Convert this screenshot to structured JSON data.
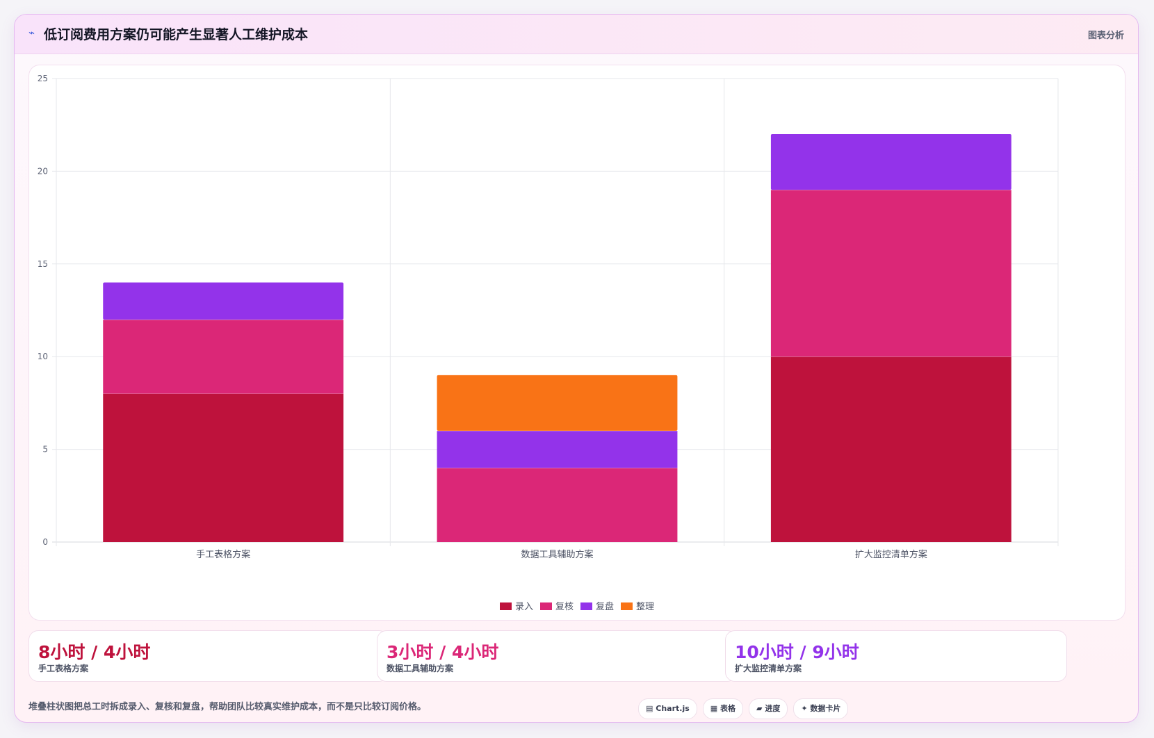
{
  "header": {
    "icon": "trend-icon",
    "title": "低订阅费用方案仍可能产生显著人工维护成本",
    "tag": "图表分析"
  },
  "chart_data": {
    "type": "bar",
    "stacked": true,
    "categories": [
      "手工表格方案",
      "数据工具辅助方案",
      "扩大监控清单方案"
    ],
    "series": [
      {
        "name": "录入",
        "values": [
          8,
          0,
          10
        ],
        "color": "#be123c"
      },
      {
        "name": "复核",
        "values": [
          4,
          4,
          9
        ],
        "color": "#db2777"
      },
      {
        "name": "复盘",
        "values": [
          2,
          2,
          3
        ],
        "color": "#9333ea"
      },
      {
        "name": "整理",
        "values": [
          0,
          3,
          0
        ],
        "color": "#f97316"
      }
    ],
    "ylim": [
      0,
      25
    ],
    "yticks": [
      "0",
      "5",
      "10",
      "15",
      "20",
      "25"
    ],
    "grid": true,
    "legend_position": "bottom"
  },
  "stats": [
    {
      "value": "8小时 / 4小时",
      "label": "手工表格方案",
      "color": "#be123c"
    },
    {
      "value": "3小时 / 4小时",
      "label": "数据工具辅助方案",
      "color": "#db2777"
    },
    {
      "value": "10小时 / 9小时",
      "label": "扩大监控清单方案",
      "color": "#9333ea"
    }
  ],
  "footer": {
    "note": "堆叠柱状图把总工时拆成录入、复核和复盘，帮助团队比较真实维护成本，而不是只比较订阅价格。"
  },
  "chips": [
    {
      "icon": "▤",
      "label": "Chart.js"
    },
    {
      "icon": "▦",
      "label": "表格"
    },
    {
      "icon": "▰",
      "label": "进度"
    },
    {
      "icon": "✦",
      "label": "数据卡片"
    }
  ]
}
